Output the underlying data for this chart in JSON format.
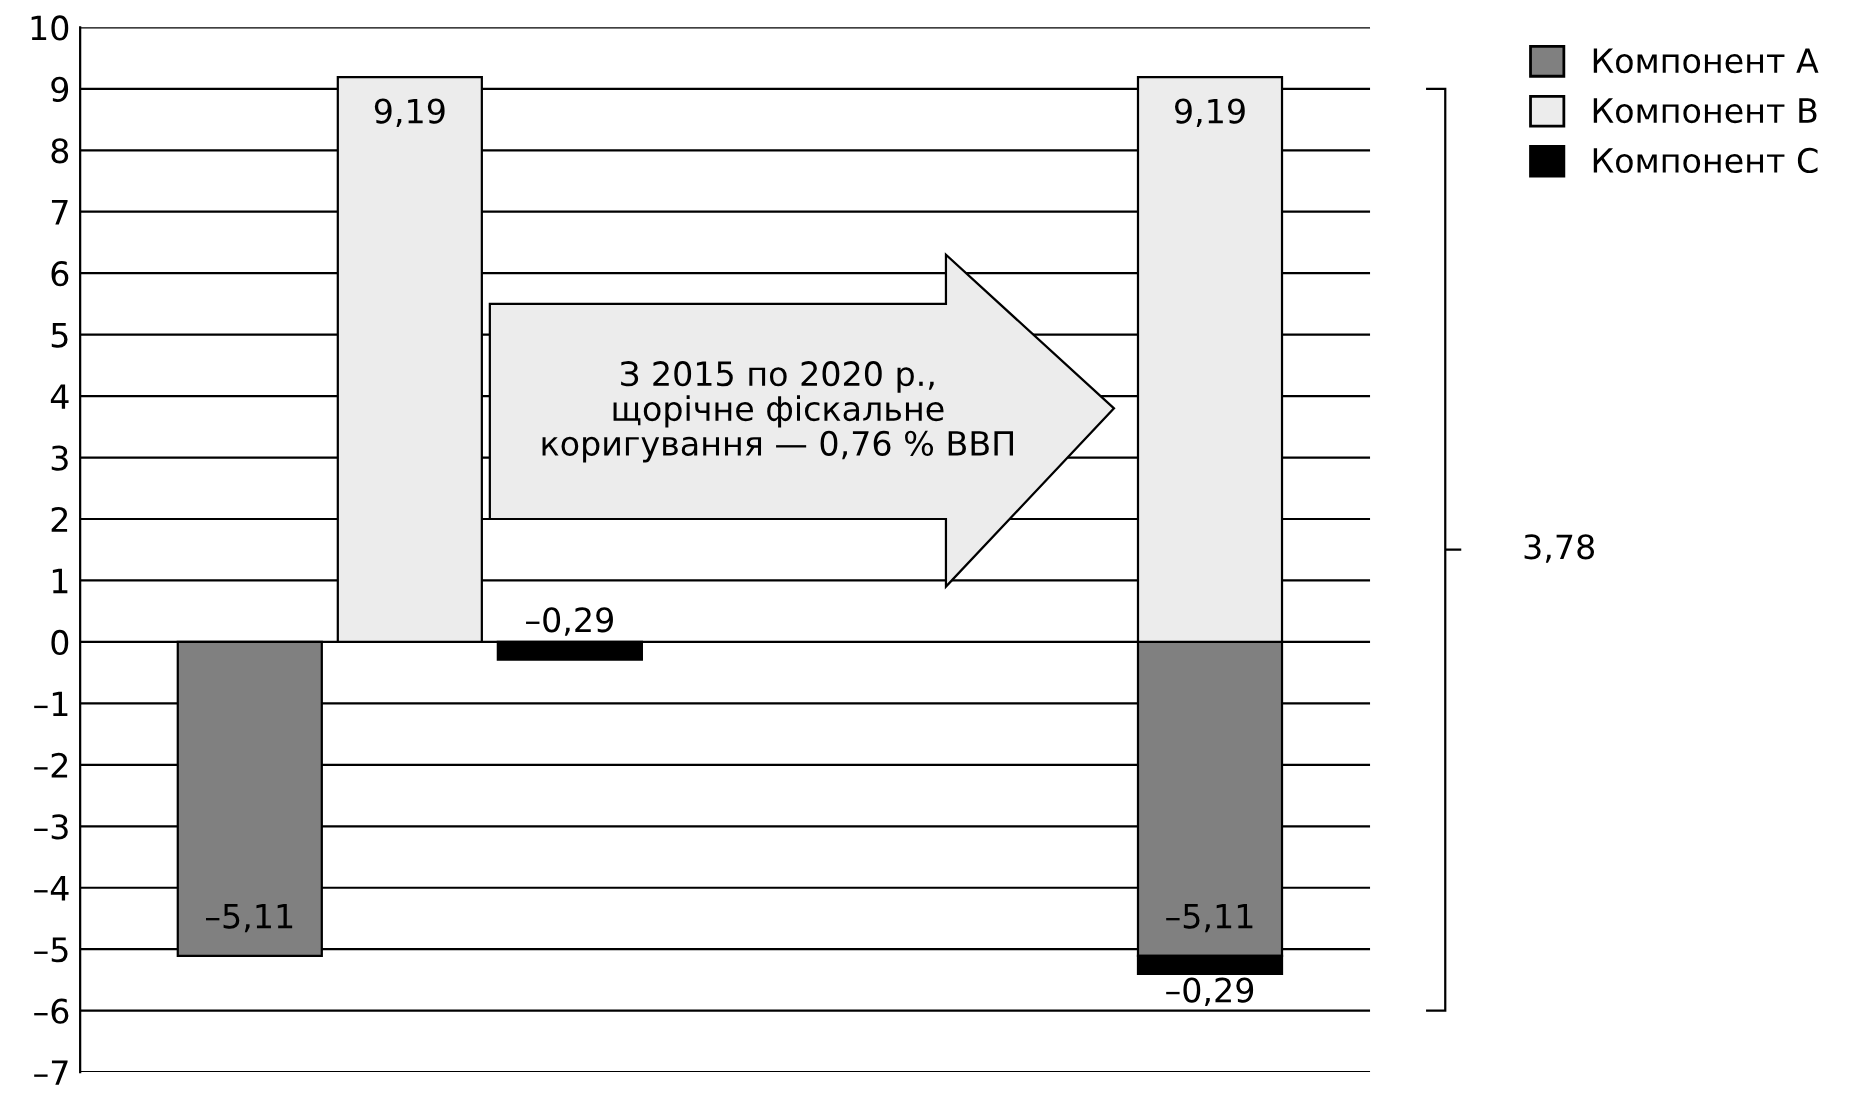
{
  "chart_data": {
    "type": "bar",
    "stacked": true,
    "categories": [
      null,
      null,
      null,
      null,
      null,
      null,
      null
    ],
    "series": [
      {
        "name": "Компонент A",
        "color": "#808080",
        "values": [
          -5.11,
          null,
          null,
          null,
          null,
          null,
          -5.11
        ],
        "value_labels": [
          "–5,11",
          null,
          null,
          null,
          null,
          null,
          "–5,11"
        ]
      },
      {
        "name": "Компонент B",
        "color": "#ececec",
        "values": [
          null,
          9.19,
          null,
          null,
          null,
          null,
          9.19
        ],
        "value_labels": [
          null,
          "9,19",
          null,
          null,
          null,
          null,
          "9,19"
        ]
      },
      {
        "name": "Компонент C",
        "color": "#000000",
        "values": [
          null,
          null,
          -0.29,
          null,
          null,
          null,
          -0.29
        ],
        "value_labels": [
          null,
          null,
          "–0,29",
          null,
          null,
          null,
          "–0,29"
        ]
      }
    ],
    "ylim": [
      -7,
      10
    ],
    "yticks": [
      {
        "value": -7,
        "label": "–7"
      },
      {
        "value": -6,
        "label": "–6"
      },
      {
        "value": -5,
        "label": "–5"
      },
      {
        "value": -4,
        "label": "–4"
      },
      {
        "value": -3,
        "label": "–3"
      },
      {
        "value": -2,
        "label": "–2"
      },
      {
        "value": -1,
        "label": "–1"
      },
      0,
      1,
      2,
      3,
      4,
      5,
      6,
      7,
      8,
      9,
      10
    ],
    "grid": "y",
    "legend": "top right",
    "tick_labels": "y",
    "annotations": [
      "З 2015 по 2020 р.,\nщорічне фіскальне\nкоригування — 0,76 % ВВП",
      "3,78"
    ]
  }
}
